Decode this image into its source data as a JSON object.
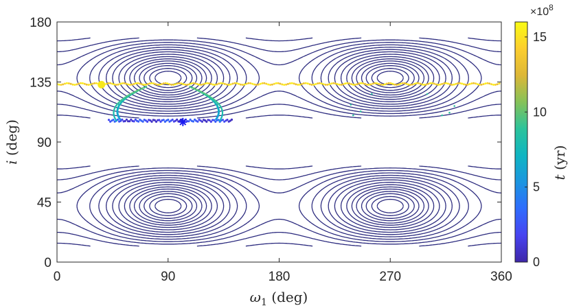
{
  "chart_data": {
    "type": "contour",
    "xlabel_symbol": "ω",
    "xlabel_sub": "1",
    "xlabel_unit": " (deg)",
    "ylabel_symbol": "i",
    "ylabel_unit": " (deg)",
    "xlim": [
      0,
      360
    ],
    "ylim": [
      0,
      180
    ],
    "xticks": [
      "0",
      "90",
      "180",
      "270",
      "360"
    ],
    "xtick_values": [
      0,
      90,
      180,
      270,
      360
    ],
    "yticks": [
      "0",
      "45",
      "90",
      "135",
      "180"
    ],
    "ytick_values": [
      0,
      45,
      90,
      135,
      180
    ],
    "grid": false,
    "contour_color": "#2b2a7e",
    "contour_levels": [
      0.03,
      0.06,
      0.1,
      0.14,
      0.19,
      0.24,
      0.3,
      0.37,
      0.45,
      0.53,
      0.62,
      0.72,
      0.83,
      0.95,
      1.1,
      1.3,
      1.55
    ],
    "upper_band_deg": [
      108,
      168
    ],
    "lower_band_deg": [
      12,
      72
    ],
    "center_omega_deg": [
      90,
      270
    ],
    "trajectory": {
      "start_marker": {
        "omega": 36,
        "i": 133,
        "color": "#f7e81c",
        "shape": "circle"
      },
      "end_marker": {
        "omega": 102,
        "i": 105,
        "color": "#1a1af0",
        "shape": "asterisk"
      },
      "horizontal_line_i": 133.5
    },
    "colorbar": {
      "label_symbol": "t",
      "label_unit": " (yr)",
      "range": [
        0,
        16
      ],
      "ticks": [
        "0",
        "5",
        "10",
        "15"
      ],
      "tick_values": [
        0,
        5,
        10,
        15
      ],
      "exponent_base": "×10",
      "exponent_power": "8",
      "colormap": [
        "#3e26a8",
        "#4743f0",
        "#2f6cfd",
        "#1b95e0",
        "#0fb5c2",
        "#2cc39b",
        "#86c258",
        "#ddb737",
        "#fcce2e",
        "#f9fb15"
      ]
    }
  }
}
